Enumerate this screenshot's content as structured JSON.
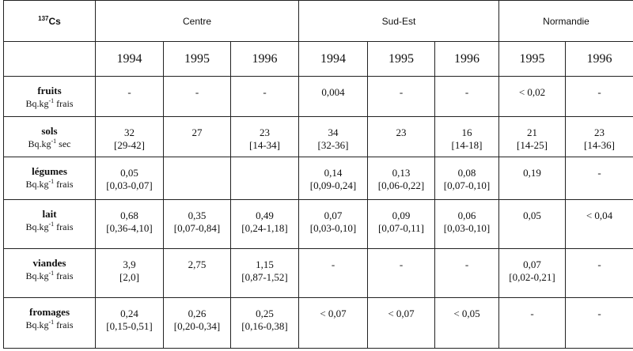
{
  "header": {
    "isotope_mass": "137",
    "isotope": "Cs",
    "regions": [
      "Centre",
      "Sud-Est",
      "Normandie"
    ],
    "years": [
      "1994",
      "1995",
      "1996",
      "1994",
      "1995",
      "1996",
      "1995",
      "1996"
    ]
  },
  "rows": [
    {
      "name": "fruits",
      "unit_pre": "Bq.kg",
      "unit_exp": "-1",
      "unit_post": " frais",
      "cells": [
        [
          "-",
          ""
        ],
        [
          "-",
          ""
        ],
        [
          "-",
          ""
        ],
        [
          "0,004",
          ""
        ],
        [
          "-",
          ""
        ],
        [
          "-",
          ""
        ],
        [
          "< 0,02",
          ""
        ],
        [
          "-",
          ""
        ]
      ]
    },
    {
      "name": "sols",
      "unit_pre": "Bq.kg",
      "unit_exp": "-1",
      "unit_post": " sec",
      "cells": [
        [
          "32",
          "[29-42]"
        ],
        [
          "27",
          ""
        ],
        [
          "23",
          "[14-34]"
        ],
        [
          "34",
          "[32-36]"
        ],
        [
          "23",
          ""
        ],
        [
          "16",
          "[14-18]"
        ],
        [
          "21",
          "[14-25]"
        ],
        [
          "23",
          "[14-36]"
        ]
      ]
    },
    {
      "name": "légumes",
      "unit_pre": "Bq.kg",
      "unit_exp": "-1",
      "unit_post": " frais",
      "cells": [
        [
          "0,05",
          "[0,03-0,07]"
        ],
        [
          "",
          ""
        ],
        [
          "",
          ""
        ],
        [
          "0,14",
          "[0,09-0,24]"
        ],
        [
          "0,13",
          "[0,06-0,22]"
        ],
        [
          "0,08",
          "[0,07-0,10]"
        ],
        [
          "0,19",
          ""
        ],
        [
          "-",
          ""
        ]
      ]
    },
    {
      "name": "lait",
      "unit_pre": "Bq.kg",
      "unit_exp": "-1",
      "unit_post": " frais",
      "cells": [
        [
          "0,68",
          "[0,36-4,10]"
        ],
        [
          "0,35",
          "[0,07-0,84]"
        ],
        [
          "0,49",
          "[0,24-1,18]"
        ],
        [
          "0,07",
          "[0,03-0,10]"
        ],
        [
          "0,09",
          "[0,07-0,11]"
        ],
        [
          "0,06",
          "[0,03-0,10]"
        ],
        [
          "0,05",
          ""
        ],
        [
          "< 0,04",
          ""
        ]
      ]
    },
    {
      "name": "viandes",
      "unit_pre": "Bq.kg",
      "unit_exp": "-1",
      "unit_post": " frais",
      "cells": [
        [
          "3,9",
          "[2,0]"
        ],
        [
          "2,75",
          ""
        ],
        [
          "1,15",
          "[0,87-1,52]"
        ],
        [
          "-",
          ""
        ],
        [
          "-",
          ""
        ],
        [
          "-",
          ""
        ],
        [
          "0,07",
          "[0,02-0,21]"
        ],
        [
          "-",
          ""
        ]
      ]
    },
    {
      "name": "fromages",
      "unit_pre": "Bq.kg",
      "unit_exp": "-1",
      "unit_post": " frais",
      "cells": [
        [
          "0,24",
          "[0,15-0,51]"
        ],
        [
          "0,26",
          "[0,20-0,34]"
        ],
        [
          "0,25",
          "[0,16-0,38]"
        ],
        [
          "< 0,07",
          ""
        ],
        [
          "< 0,07",
          ""
        ],
        [
          "< 0,05",
          ""
        ],
        [
          "-",
          ""
        ],
        [
          "-",
          ""
        ]
      ]
    }
  ]
}
